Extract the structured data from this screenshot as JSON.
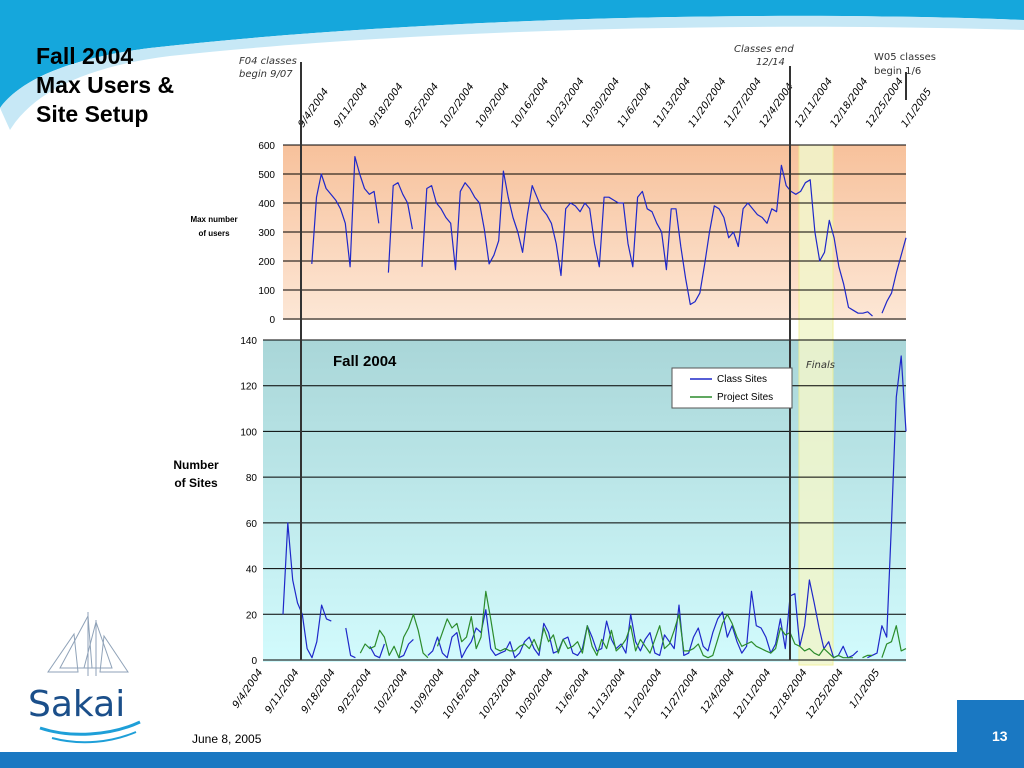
{
  "slide": {
    "title": "Fall 2004\nMax Users &\nSite Setup",
    "footer_date": "June 8, 2005",
    "page_number": "13",
    "logo_text": "Sakai"
  },
  "annotations": {
    "f04": [
      "F04 classes",
      "begin 9/07"
    ],
    "classes_end": [
      "Classes end",
      "12/14"
    ],
    "w05": [
      "W05 classes",
      "begin  1/6"
    ],
    "finals": "Finals"
  },
  "colors": {
    "top_band": "#15a7dc",
    "bottom_band": "#1a78c2",
    "upper_bg_top": "#f7c19b",
    "upper_bg_bottom": "#fde7d6",
    "lower_bg_top": "#a9d6d8",
    "lower_bg_bottom": "#d2fbfd",
    "finals_fill": "#f2f6cc",
    "class_sites": "#1f28c9",
    "project_sites": "#2c8c2c",
    "users_line": "#1f28c9"
  },
  "chart_data": [
    {
      "type": "line",
      "ylabel": "Max number\nof users",
      "ylim": [
        0,
        600
      ],
      "yticks": [
        "0",
        "100",
        "200",
        "300",
        "400",
        "500",
        "600"
      ],
      "x_date_labels": [
        "9/4/2004",
        "9/11/2004",
        "9/18/2004",
        "9/25/2004",
        "10/2/2004",
        "10/9/2004",
        "10/16/2004",
        "10/23/2004",
        "10/30/2004",
        "11/6/2004",
        "11/13/2004",
        "11/20/2004",
        "11/27/2004",
        "12/4/2004",
        "12/11/2004",
        "12/18/2004",
        "12/25/2004",
        "1/1/2005"
      ],
      "x_range_days": [
        0,
        125
      ],
      "grid": true,
      "series": [
        {
          "values": [
            null,
            null,
            null,
            null,
            null,
            null,
            190,
            420,
            500,
            450,
            430,
            410,
            380,
            330,
            180,
            560,
            500,
            450,
            430,
            440,
            330,
            null,
            160,
            460,
            470,
            430,
            400,
            310,
            null,
            180,
            450,
            460,
            400,
            380,
            350,
            330,
            170,
            440,
            470,
            450,
            420,
            400,
            310,
            190,
            220,
            270,
            510,
            420,
            350,
            300,
            230,
            360,
            460,
            420,
            380,
            360,
            330,
            260,
            150,
            380,
            400,
            390,
            370,
            400,
            380,
            260,
            180,
            420,
            420,
            410,
            400,
            400,
            260,
            180,
            420,
            440,
            380,
            370,
            330,
            300,
            170,
            380,
            380,
            250,
            140,
            50,
            60,
            90,
            190,
            300,
            390,
            380,
            350,
            280,
            300,
            250,
            380,
            400,
            380,
            360,
            350,
            330,
            380,
            370,
            530,
            460,
            440,
            430,
            440,
            470,
            480,
            300,
            200,
            230,
            340,
            280,
            180,
            120,
            40,
            30,
            20,
            20,
            25,
            10,
            null,
            20,
            60,
            90,
            160,
            220,
            280
          ]
        }
      ]
    },
    {
      "type": "line",
      "title": "Fall 2004",
      "ylabel": "Number\nof Sites",
      "ylim": [
        0,
        140
      ],
      "yticks": [
        "0",
        "20",
        "40",
        "60",
        "80",
        "100",
        "120",
        "140"
      ],
      "x_date_labels": [
        "9/4/2004",
        "9/11/2004",
        "9/18/2004",
        "9/25/2004",
        "10/2/2004",
        "10/9/2004",
        "10/16/2004",
        "10/23/2004",
        "10/30/2004",
        "11/6/2004",
        "11/13/2004",
        "11/20/2004",
        "11/27/2004",
        "12/4/2004",
        "12/11/2004",
        "12/18/2004",
        "12/25/2004",
        "1/1/2005"
      ],
      "x_range_days": [
        0,
        125
      ],
      "grid": true,
      "legend": "top-right",
      "series": [
        {
          "name": "Class Sites",
          "values": [
            20,
            60,
            35,
            25,
            20,
            5,
            1,
            8,
            24,
            18,
            17,
            null,
            null,
            14,
            2,
            1,
            null,
            null,
            6,
            2,
            1,
            7,
            null,
            null,
            1,
            2,
            7,
            9,
            null,
            null,
            2,
            4,
            10,
            3,
            1,
            10,
            12,
            1,
            5,
            8,
            14,
            12,
            22,
            5,
            2,
            3,
            4,
            8,
            1,
            3,
            8,
            10,
            5,
            2,
            16,
            12,
            3,
            4,
            9,
            10,
            3,
            2,
            5,
            15,
            10,
            4,
            5,
            17,
            9,
            5,
            7,
            3,
            20,
            8,
            4,
            9,
            12,
            3,
            2,
            11,
            8,
            5,
            24,
            2,
            3,
            10,
            14,
            6,
            4,
            12,
            18,
            21,
            10,
            15,
            8,
            3,
            6,
            30,
            15,
            14,
            10,
            3,
            7,
            18,
            5,
            28,
            29,
            6,
            15,
            35,
            25,
            14,
            5,
            8,
            1,
            2,
            6,
            1,
            2,
            4,
            null,
            1,
            2,
            3,
            15,
            10,
            60,
            115,
            133,
            100
          ]
        },
        {
          "name": "Project Sites",
          "values": [
            null,
            null,
            null,
            null,
            null,
            null,
            null,
            null,
            null,
            null,
            null,
            null,
            null,
            null,
            null,
            null,
            3,
            7,
            5,
            6,
            13,
            10,
            2,
            6,
            1,
            10,
            14,
            20,
            13,
            3,
            1,
            null,
            6,
            12,
            18,
            14,
            16,
            8,
            10,
            19,
            5,
            10,
            30,
            18,
            5,
            4,
            5,
            4,
            4,
            6,
            7,
            5,
            9,
            4,
            14,
            8,
            11,
            3,
            9,
            5,
            6,
            8,
            3,
            15,
            6,
            2,
            9,
            5,
            13,
            4,
            6,
            9,
            15,
            4,
            9,
            6,
            3,
            9,
            15,
            5,
            7,
            13,
            20,
            4,
            4,
            5,
            7,
            2,
            1,
            2,
            9,
            16,
            20,
            16,
            10,
            6,
            7,
            8,
            6,
            5,
            4,
            3,
            5,
            14,
            11,
            12,
            7,
            6,
            4,
            5,
            3,
            2,
            5,
            3,
            1,
            2,
            1,
            1,
            1,
            null,
            1,
            2,
            2,
            null,
            1,
            7,
            8,
            15,
            4,
            5
          ]
        }
      ]
    }
  ]
}
